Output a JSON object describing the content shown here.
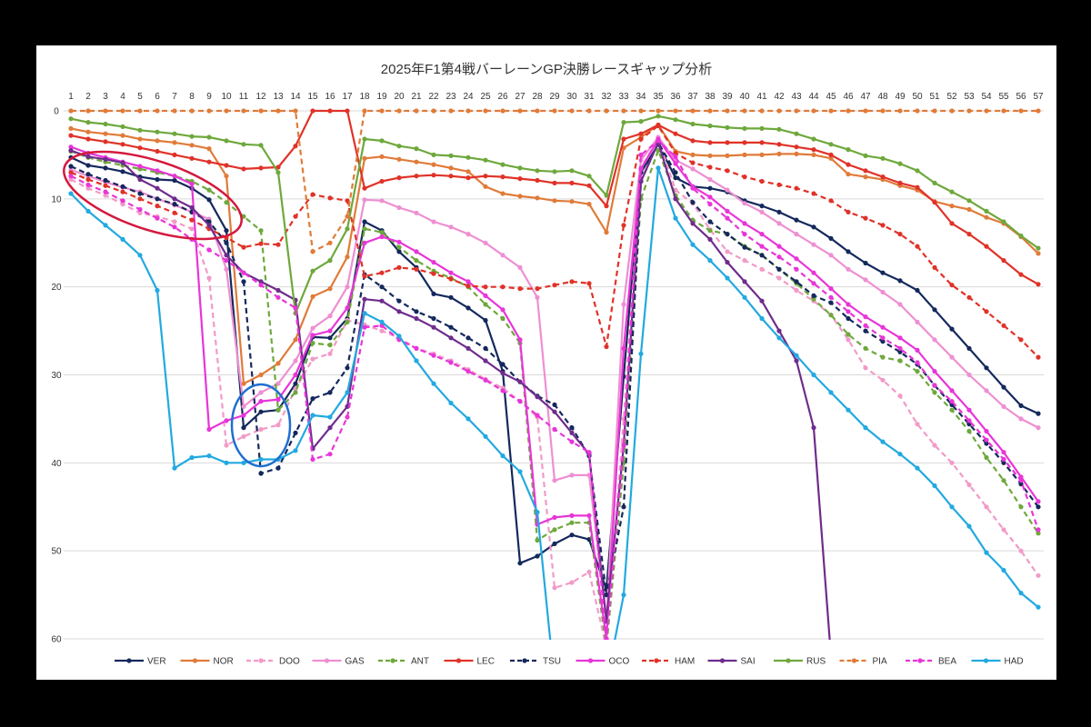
{
  "chart_data": {
    "type": "line",
    "title": "2025年F1第4戦バーレーンGP決勝レースギャップ分析",
    "xlabel": "",
    "ylabel": "",
    "x": [
      1,
      2,
      3,
      4,
      5,
      6,
      7,
      8,
      9,
      10,
      11,
      12,
      13,
      14,
      15,
      16,
      17,
      18,
      19,
      20,
      21,
      22,
      23,
      24,
      25,
      26,
      27,
      28,
      29,
      30,
      31,
      32,
      33,
      34,
      35,
      36,
      37,
      38,
      39,
      40,
      41,
      42,
      43,
      44,
      45,
      46,
      47,
      48,
      49,
      50,
      51,
      52,
      53,
      54,
      55,
      56,
      57
    ],
    "xaxis_position": "top",
    "ylim": [
      0,
      60
    ],
    "y_inverted": true,
    "y_ticks": [
      0,
      10,
      20,
      30,
      40,
      50,
      60
    ],
    "grid": "horizontal",
    "legend_position": "bottom",
    "series": [
      {
        "name": "VER",
        "color": "#14285c",
        "dashed": false,
        "values": [
          5.3,
          6.2,
          6.5,
          6.9,
          7.5,
          7.8,
          7.9,
          8.8,
          10.1,
          13.6,
          36.0,
          34.2,
          34.0,
          31.0,
          25.7,
          25.8,
          23.6,
          12.6,
          13.6,
          16.0,
          17.8,
          20.8,
          21.2,
          22.4,
          23.8,
          29.6,
          51.4,
          50.6,
          49.2,
          48.2,
          48.7,
          54.4,
          30.2,
          7.0,
          3.8,
          7.6,
          8.6,
          8.8,
          9.2,
          10.2,
          10.8,
          11.5,
          12.4,
          13.2,
          14.5,
          16.0,
          17.3,
          18.4,
          19.3,
          20.4,
          22.6,
          24.8,
          27.0,
          29.2,
          31.4,
          33.5,
          34.4
        ]
      },
      {
        "name": "NOR",
        "color": "#e07b39",
        "dashed": false,
        "values": [
          2.0,
          2.4,
          2.6,
          2.8,
          3.2,
          3.4,
          3.6,
          3.9,
          4.3,
          7.4,
          31.0,
          30.0,
          28.7,
          26.0,
          21.1,
          20.2,
          16.6,
          5.4,
          5.2,
          5.5,
          5.8,
          6.1,
          6.5,
          6.9,
          8.6,
          9.4,
          9.7,
          9.9,
          10.2,
          10.3,
          10.6,
          13.8,
          4.2,
          3.0,
          1.6,
          4.6,
          5.0,
          5.1,
          5.1,
          5.0,
          5.0,
          4.9,
          4.9,
          5.0,
          5.4,
          7.2,
          7.5,
          7.8,
          8.5,
          9.0,
          10.3,
          10.8,
          11.2,
          12.1,
          12.8,
          14.3,
          16.2
        ]
      },
      {
        "name": "DOO",
        "color": "#f29ac8",
        "dashed": true,
        "values": [
          7.8,
          8.8,
          9.6,
          10.6,
          11.6,
          12.0,
          12.6,
          13.4,
          19.0,
          38.0,
          37.0,
          36.2,
          35.7,
          31.6,
          28.2,
          27.6,
          23.8,
          24.3,
          25.0,
          25.8,
          27.0,
          27.6,
          28.4,
          29.4,
          30.5,
          31.5,
          33.0,
          34.8,
          54.2,
          53.6,
          52.4,
          61.0,
          35.0,
          6.5,
          3.2,
          9.0,
          10.5,
          13.5,
          16.0,
          17.0,
          18.0,
          19.0,
          20.4,
          21.6,
          23.2,
          26.0,
          29.2,
          30.6,
          32.4,
          35.6,
          38.0,
          40.0,
          42.5,
          45.0,
          47.6,
          50.0,
          52.8
        ]
      },
      {
        "name": "GAS",
        "color": "#ee8fd2",
        "dashed": false,
        "values": [
          6.7,
          7.4,
          8.1,
          8.7,
          9.2,
          10.0,
          10.7,
          11.5,
          12.3,
          18.0,
          33.6,
          32.0,
          31.0,
          28.4,
          24.7,
          23.3,
          20.0,
          10.1,
          10.2,
          11.0,
          11.6,
          12.6,
          13.2,
          14.0,
          15.0,
          16.4,
          17.8,
          21.2,
          42.0,
          41.4,
          41.4,
          58.0,
          22.0,
          5.6,
          3.0,
          5.6,
          6.6,
          7.8,
          9.0,
          10.5,
          11.5,
          12.8,
          14.0,
          15.2,
          16.4,
          18.0,
          19.2,
          20.6,
          22.0,
          24.0,
          26.0,
          28.0,
          30.0,
          31.8,
          33.6,
          35.0,
          36.0
        ]
      },
      {
        "name": "ANT",
        "color": "#6ea83c",
        "dashed": true,
        "values": [
          4.6,
          5.3,
          5.8,
          6.2,
          6.6,
          7.0,
          7.4,
          8.0,
          9.0,
          10.4,
          12.0,
          13.6,
          34.0,
          32.0,
          26.4,
          26.6,
          24.0,
          13.4,
          13.8,
          15.5,
          17.0,
          18.2,
          19.0,
          20.0,
          22.0,
          23.6,
          26.4,
          48.8,
          47.6,
          46.8,
          46.8,
          61.0,
          40.0,
          10.0,
          4.5,
          9.6,
          12.4,
          13.6,
          14.0,
          15.4,
          16.4,
          18.0,
          19.6,
          21.4,
          23.2,
          25.4,
          27.0,
          28.0,
          28.4,
          29.6,
          32.0,
          34.0,
          36.4,
          39.4,
          42.0,
          45.0,
          48.0
        ]
      },
      {
        "name": "LEC",
        "color": "#e03228",
        "dashed": false,
        "values": [
          2.8,
          3.2,
          3.5,
          3.8,
          4.2,
          4.6,
          5.0,
          5.4,
          5.8,
          6.2,
          6.6,
          6.5,
          6.4,
          4.0,
          0.0,
          0.0,
          0.0,
          8.8,
          8.0,
          7.6,
          7.4,
          7.3,
          7.4,
          7.6,
          7.4,
          7.5,
          7.7,
          7.9,
          8.2,
          8.2,
          8.5,
          10.8,
          3.2,
          2.6,
          1.6,
          2.6,
          3.4,
          3.6,
          3.6,
          3.6,
          3.6,
          3.8,
          4.1,
          4.4,
          5.0,
          6.1,
          6.8,
          7.5,
          8.2,
          8.7,
          10.4,
          12.8,
          14.0,
          15.4,
          17.0,
          18.6,
          19.7
        ]
      },
      {
        "name": "TSU",
        "color": "#14285c",
        "dashed": true,
        "values": [
          6.3,
          7.2,
          7.9,
          8.6,
          9.4,
          10.0,
          10.6,
          11.5,
          12.6,
          15.0,
          19.4,
          41.2,
          40.6,
          36.6,
          32.7,
          32.0,
          29.2,
          18.6,
          20.0,
          21.6,
          22.8,
          23.6,
          24.6,
          25.8,
          27.0,
          28.8,
          30.8,
          32.4,
          33.4,
          36.0,
          39.2,
          55.0,
          45.0,
          8.0,
          3.6,
          7.0,
          10.4,
          12.6,
          14.0,
          15.5,
          16.4,
          18.0,
          19.4,
          21.0,
          21.8,
          23.6,
          25.0,
          26.2,
          27.4,
          28.8,
          31.2,
          33.4,
          35.6,
          37.8,
          40.0,
          42.4,
          45.0
        ]
      },
      {
        "name": "OCO",
        "color": "#e835d8",
        "dashed": false,
        "values": [
          4.1,
          4.8,
          5.3,
          5.8,
          6.3,
          6.8,
          7.4,
          8.3,
          36.2,
          35.2,
          34.6,
          33.0,
          32.8,
          30.0,
          25.5,
          25.0,
          22.4,
          15.0,
          14.3,
          14.9,
          16.0,
          17.2,
          18.4,
          19.4,
          21.0,
          22.6,
          26.0,
          47.0,
          46.2,
          46.0,
          46.0,
          60.0,
          27.0,
          6.6,
          3.2,
          6.0,
          8.6,
          9.8,
          11.4,
          12.8,
          14.0,
          15.4,
          16.8,
          18.4,
          20.2,
          22.0,
          23.4,
          24.6,
          25.8,
          27.2,
          29.6,
          31.8,
          34.0,
          36.4,
          38.8,
          41.6,
          44.4
        ]
      },
      {
        "name": "HAM",
        "color": "#e03228",
        "dashed": true,
        "values": [
          7.0,
          7.8,
          8.5,
          9.2,
          10.0,
          10.8,
          11.6,
          12.4,
          13.4,
          14.4,
          15.5,
          15.1,
          15.2,
          12.0,
          9.5,
          9.9,
          10.2,
          18.8,
          18.4,
          17.8,
          18.0,
          18.5,
          19.1,
          19.9,
          20.0,
          20.0,
          20.2,
          20.2,
          19.8,
          19.4,
          19.6,
          26.8,
          13.0,
          3.2,
          1.7,
          4.8,
          5.9,
          6.4,
          6.8,
          7.5,
          8.0,
          8.4,
          8.8,
          9.4,
          10.2,
          11.5,
          12.2,
          13.0,
          14.0,
          15.4,
          17.8,
          19.8,
          21.2,
          22.8,
          24.4,
          26.0,
          28.0
        ]
      },
      {
        "name": "SAI",
        "color": "#6e2c8c",
        "dashed": false,
        "values": [
          4.5,
          5.2,
          5.5,
          5.9,
          7.8,
          8.8,
          10.0,
          11.0,
          13.0,
          16.4,
          18.4,
          19.4,
          20.4,
          21.5,
          38.4,
          36.0,
          33.6,
          21.4,
          21.6,
          22.8,
          23.6,
          24.6,
          25.8,
          27.0,
          28.4,
          29.8,
          30.8,
          32.5,
          34.2,
          36.6,
          39.0,
          58.0,
          38.0,
          8.0,
          3.6,
          10.0,
          12.8,
          14.6,
          17.2,
          19.4,
          21.6,
          25.0,
          28.4,
          36.0,
          62.0,
          null,
          null,
          null,
          null,
          null,
          null,
          null,
          null,
          null,
          null,
          null,
          null
        ]
      },
      {
        "name": "RUS",
        "color": "#6ea83c",
        "dashed": false,
        "values": [
          0.9,
          1.3,
          1.5,
          1.8,
          2.2,
          2.4,
          2.6,
          2.9,
          3.0,
          3.4,
          3.8,
          3.9,
          7.0,
          23.0,
          18.2,
          17.0,
          13.4,
          3.2,
          3.4,
          4.0,
          4.3,
          5.0,
          5.1,
          5.3,
          5.6,
          6.1,
          6.5,
          6.8,
          6.9,
          6.8,
          7.4,
          9.6,
          1.3,
          1.2,
          0.6,
          1.0,
          1.5,
          1.7,
          1.9,
          2.0,
          2.0,
          2.1,
          2.6,
          3.2,
          3.8,
          4.4,
          5.1,
          5.4,
          6.0,
          6.8,
          8.2,
          9.2,
          10.2,
          11.4,
          12.6,
          14.2,
          15.6
        ]
      },
      {
        "name": "PIA",
        "color": "#e07b39",
        "dashed": true,
        "values": [
          0,
          0,
          0,
          0,
          0,
          0,
          0,
          0,
          0,
          0,
          0,
          0,
          0,
          0,
          16.0,
          15.0,
          12.0,
          0,
          0,
          0,
          0,
          0,
          0,
          0,
          0,
          0,
          0,
          0,
          0,
          0,
          0,
          0,
          0,
          0,
          0,
          0,
          0,
          0,
          0,
          0,
          0,
          0,
          0,
          0,
          0,
          0,
          0,
          0,
          0,
          0,
          0,
          0,
          0,
          0,
          0,
          0,
          0
        ]
      },
      {
        "name": "BEA",
        "color": "#e835d8",
        "dashed": true,
        "values": [
          7.4,
          8.4,
          9.2,
          10.2,
          11.2,
          12.2,
          13.2,
          14.6,
          15.8,
          17.0,
          18.4,
          19.8,
          21.2,
          22.4,
          39.6,
          39.0,
          34.8,
          24.6,
          24.4,
          26.0,
          27.0,
          27.8,
          28.6,
          29.6,
          30.6,
          31.8,
          33.0,
          34.6,
          36.2,
          37.6,
          38.8,
          60.0,
          38.0,
          5.0,
          3.4,
          5.2,
          8.8,
          10.6,
          12.2,
          14.0,
          15.4,
          16.6,
          18.0,
          19.6,
          21.2,
          22.8,
          24.4,
          25.8,
          27.0,
          28.6,
          31.2,
          33.0,
          35.2,
          37.4,
          39.6,
          42.0,
          47.6
        ]
      },
      {
        "name": "HAD",
        "color": "#22a9e0",
        "dashed": false,
        "values": [
          9.4,
          11.4,
          13.0,
          14.6,
          16.4,
          20.4,
          40.6,
          39.4,
          39.2,
          40.0,
          40.0,
          39.6,
          39.6,
          38.6,
          34.6,
          34.8,
          32.0,
          23.0,
          24.0,
          25.6,
          28.4,
          31.0,
          33.2,
          35.0,
          37.0,
          39.2,
          41.0,
          45.6,
          65.0,
          65.0,
          65.0,
          65.0,
          55.0,
          27.6,
          6.5,
          12.2,
          15.2,
          17.0,
          19.0,
          21.2,
          23.6,
          25.8,
          27.8,
          30.0,
          32.0,
          34.0,
          36.0,
          37.6,
          39.0,
          40.6,
          42.6,
          45.0,
          47.2,
          50.2,
          52.2,
          54.8,
          56.4
        ]
      }
    ]
  }
}
